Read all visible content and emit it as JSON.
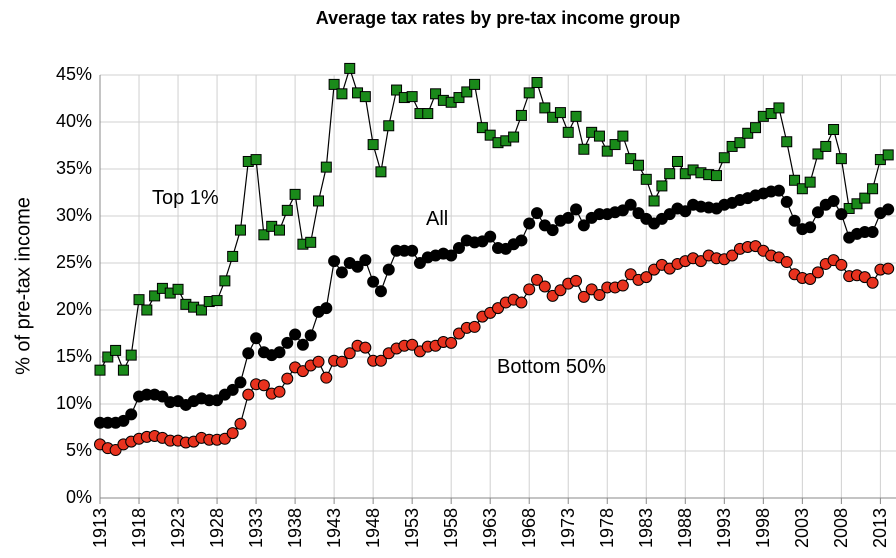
{
  "chart_data": {
    "type": "line",
    "title": "Average tax rates by pre-tax income group",
    "y_label": "% of pre-tax income",
    "annotations": [
      "Top 1%",
      "All",
      "Bottom 50%"
    ],
    "grid": true,
    "xlim": [
      1913,
      2015
    ],
    "ylim": [
      0,
      45
    ],
    "xticks": [
      1913,
      1918,
      1923,
      1928,
      1933,
      1938,
      1943,
      1948,
      1953,
      1958,
      1963,
      1968,
      1973,
      1978,
      1983,
      1988,
      1993,
      1998,
      2003,
      2008,
      2013
    ],
    "yticks": [
      {
        "value": 0,
        "label": "0%"
      },
      {
        "value": 5,
        "label": "5%"
      },
      {
        "value": 10,
        "label": "10%"
      },
      {
        "value": 15,
        "label": "15%"
      },
      {
        "value": 20,
        "label": "20%"
      },
      {
        "value": 25,
        "label": "25%"
      },
      {
        "value": 30,
        "label": "30%"
      },
      {
        "value": 35,
        "label": "35%"
      },
      {
        "value": 40,
        "label": "40%"
      },
      {
        "value": 45,
        "label": "45%"
      }
    ],
    "x": [
      1913,
      1914,
      1915,
      1916,
      1917,
      1918,
      1919,
      1920,
      1921,
      1922,
      1923,
      1924,
      1925,
      1926,
      1927,
      1928,
      1929,
      1930,
      1931,
      1932,
      1933,
      1934,
      1935,
      1936,
      1937,
      1938,
      1939,
      1940,
      1941,
      1942,
      1943,
      1944,
      1945,
      1946,
      1947,
      1948,
      1949,
      1950,
      1951,
      1952,
      1953,
      1954,
      1955,
      1956,
      1957,
      1958,
      1959,
      1960,
      1961,
      1962,
      1963,
      1964,
      1965,
      1966,
      1967,
      1968,
      1969,
      1970,
      1971,
      1972,
      1973,
      1974,
      1975,
      1976,
      1977,
      1978,
      1979,
      1980,
      1981,
      1982,
      1983,
      1984,
      1985,
      1986,
      1987,
      1988,
      1989,
      1990,
      1991,
      1992,
      1993,
      1994,
      1995,
      1996,
      1997,
      1998,
      1999,
      2000,
      2001,
      2002,
      2003,
      2004,
      2005,
      2006,
      2007,
      2008,
      2009,
      2010,
      2011,
      2012,
      2013,
      2014
    ],
    "series": [
      {
        "name": "Top 1%",
        "color": "#1a8a1a",
        "marker": "square",
        "values": [
          13.6,
          15.0,
          15.7,
          13.6,
          15.2,
          21.1,
          20.0,
          21.5,
          22.3,
          21.8,
          22.2,
          20.6,
          20.3,
          20.0,
          20.9,
          21.0,
          23.1,
          25.7,
          28.5,
          35.8,
          36.0,
          28.0,
          28.9,
          28.5,
          30.6,
          32.3,
          27.0,
          27.2,
          31.6,
          35.2,
          44.0,
          43.0,
          45.7,
          43.1,
          42.7,
          37.6,
          34.7,
          39.6,
          43.4,
          42.6,
          42.7,
          40.9,
          40.9,
          43.0,
          42.3,
          42.1,
          42.6,
          43.2,
          44.0,
          39.4,
          38.6,
          37.8,
          38.0,
          38.4,
          40.7,
          43.1,
          44.2,
          41.5,
          40.5,
          41.0,
          38.9,
          40.6,
          37.1,
          38.9,
          38.5,
          36.9,
          37.6,
          38.5,
          36.1,
          35.4,
          33.9,
          31.6,
          33.2,
          34.5,
          35.8,
          34.5,
          34.9,
          34.6,
          34.4,
          34.3,
          36.2,
          37.4,
          37.8,
          38.8,
          39.4,
          40.6,
          40.9,
          41.5,
          37.9,
          33.8,
          32.9,
          33.6,
          36.6,
          37.4,
          39.2,
          36.1,
          30.8,
          31.3,
          31.9,
          32.9,
          36.0,
          36.5
        ]
      },
      {
        "name": "All",
        "color": "#000000",
        "marker": "circle",
        "values": [
          8.0,
          8.0,
          8.0,
          8.2,
          8.9,
          10.8,
          11.0,
          11.0,
          10.8,
          10.2,
          10.3,
          9.9,
          10.3,
          10.6,
          10.4,
          10.4,
          11.0,
          11.5,
          12.3,
          15.4,
          17.0,
          15.5,
          15.2,
          15.5,
          16.5,
          17.4,
          16.3,
          17.3,
          19.8,
          20.2,
          25.2,
          24.0,
          25.0,
          24.6,
          25.3,
          23.0,
          22.0,
          24.3,
          26.3,
          26.3,
          26.3,
          25.0,
          25.6,
          25.8,
          26.0,
          25.8,
          26.6,
          27.4,
          27.2,
          27.3,
          27.8,
          26.6,
          26.5,
          27.0,
          27.4,
          29.2,
          30.3,
          29.0,
          28.5,
          29.5,
          29.8,
          30.7,
          29.0,
          29.8,
          30.2,
          30.2,
          30.4,
          30.6,
          31.2,
          30.3,
          29.7,
          29.2,
          29.7,
          30.2,
          30.8,
          30.5,
          31.2,
          31.0,
          30.9,
          30.8,
          31.2,
          31.4,
          31.7,
          31.9,
          32.2,
          32.4,
          32.6,
          32.7,
          31.5,
          29.5,
          28.6,
          28.8,
          30.4,
          31.2,
          31.6,
          30.2,
          27.7,
          28.1,
          28.3,
          28.3,
          30.3,
          30.7
        ]
      },
      {
        "name": "Bottom 50%",
        "color": "#e8321e",
        "marker": "circle",
        "values": [
          5.7,
          5.3,
          5.1,
          5.7,
          6.0,
          6.3,
          6.5,
          6.6,
          6.4,
          6.1,
          6.1,
          5.9,
          6.0,
          6.4,
          6.2,
          6.2,
          6.3,
          6.9,
          7.9,
          11.0,
          12.1,
          12.0,
          11.1,
          11.3,
          12.7,
          13.9,
          13.5,
          14.1,
          14.5,
          12.8,
          14.6,
          14.5,
          15.4,
          16.2,
          16.0,
          14.6,
          14.6,
          15.4,
          15.9,
          16.2,
          16.3,
          15.6,
          16.1,
          16.2,
          16.6,
          16.5,
          17.5,
          18.1,
          18.2,
          19.3,
          19.7,
          20.2,
          20.8,
          21.1,
          20.8,
          22.2,
          23.2,
          22.5,
          21.5,
          22.1,
          22.8,
          23.1,
          21.4,
          22.2,
          21.6,
          22.4,
          22.4,
          22.6,
          23.8,
          23.2,
          23.5,
          24.3,
          24.8,
          24.4,
          24.9,
          25.2,
          25.5,
          25.2,
          25.8,
          25.5,
          25.4,
          25.8,
          26.5,
          26.7,
          26.8,
          26.3,
          25.8,
          25.6,
          25.1,
          23.8,
          23.4,
          23.3,
          24.0,
          24.9,
          25.3,
          24.8,
          23.6,
          23.7,
          23.5,
          22.9,
          24.3,
          24.4
        ]
      }
    ]
  }
}
